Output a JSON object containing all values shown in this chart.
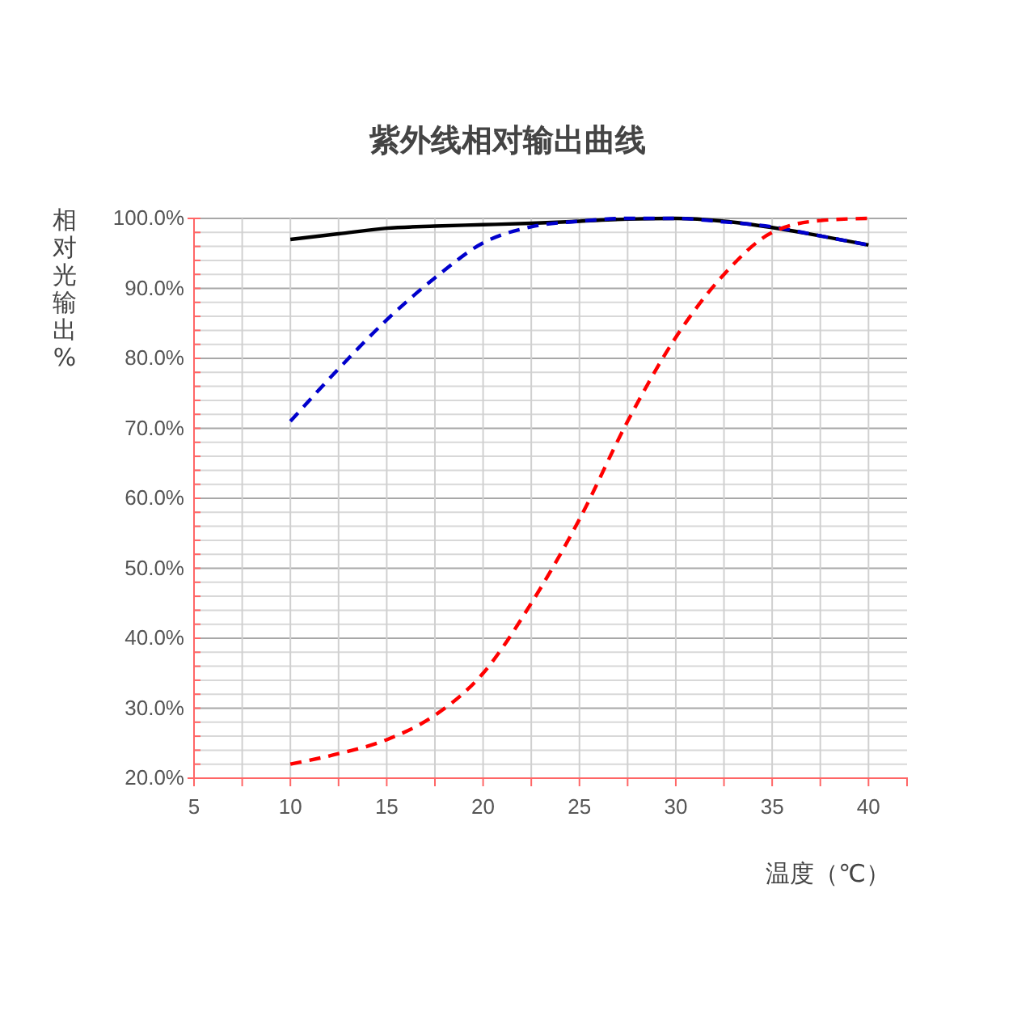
{
  "chart_data": {
    "type": "line",
    "title": "紫外线相对输出曲线",
    "xlabel": "温度（℃）",
    "ylabel": "相对光输出%",
    "x": [
      10,
      12.5,
      15,
      17.5,
      20,
      22.5,
      25,
      27.5,
      30,
      32.5,
      35,
      37.5,
      40
    ],
    "series": [
      {
        "color": "#000000",
        "line_style": "solid",
        "values": [
          97,
          97.8,
          98.6,
          98.9,
          99.1,
          99.3,
          99.6,
          99.9,
          100,
          99.6,
          98.7,
          97.5,
          96.2
        ]
      },
      {
        "color": "#0000cc",
        "line_style": "dashed",
        "values": [
          71,
          78.5,
          85.5,
          91.5,
          96.5,
          98.8,
          99.6,
          100,
          100,
          99.5,
          98.8,
          97.5,
          96.2
        ]
      },
      {
        "color": "#ff0000",
        "line_style": "dashed",
        "values": [
          22,
          23.5,
          25.5,
          29,
          35,
          45,
          57,
          71,
          83,
          92,
          98,
          99.7,
          100
        ]
      }
    ],
    "xlim": [
      5,
      42
    ],
    "xticks": [
      5,
      {
        "value": 7.5,
        "label": null
      },
      10,
      {
        "value": 12.5,
        "label": null
      },
      15,
      {
        "value": 17.5,
        "label": null
      },
      20,
      {
        "value": 22.5,
        "label": null
      },
      25,
      {
        "value": 27.5,
        "label": null
      },
      30,
      {
        "value": 32.5,
        "label": null
      },
      35,
      {
        "value": 37.5,
        "label": null
      },
      40
    ],
    "ylim": [
      20,
      100
    ],
    "yticks": [
      {
        "value": 20,
        "label": "20.0%"
      },
      {
        "value": 22,
        "label": null
      },
      {
        "value": 24,
        "label": null
      },
      {
        "value": 26,
        "label": null
      },
      {
        "value": 28,
        "label": null
      },
      {
        "value": 30,
        "label": "30.0%"
      },
      {
        "value": 32,
        "label": null
      },
      {
        "value": 34,
        "label": null
      },
      {
        "value": 36,
        "label": null
      },
      {
        "value": 38,
        "label": null
      },
      {
        "value": 40,
        "label": "40.0%"
      },
      {
        "value": 42,
        "label": null
      },
      {
        "value": 44,
        "label": null
      },
      {
        "value": 46,
        "label": null
      },
      {
        "value": 48,
        "label": null
      },
      {
        "value": 50,
        "label": "50.0%"
      },
      {
        "value": 52,
        "label": null
      },
      {
        "value": 54,
        "label": null
      },
      {
        "value": 56,
        "label": null
      },
      {
        "value": 58,
        "label": null
      },
      {
        "value": 60,
        "label": "60.0%"
      },
      {
        "value": 62,
        "label": null
      },
      {
        "value": 64,
        "label": null
      },
      {
        "value": 66,
        "label": null
      },
      {
        "value": 68,
        "label": null
      },
      {
        "value": 70,
        "label": "70.0%"
      },
      {
        "value": 72,
        "label": null
      },
      {
        "value": 74,
        "label": null
      },
      {
        "value": 76,
        "label": null
      },
      {
        "value": 78,
        "label": null
      },
      {
        "value": 80,
        "label": "80.0%"
      },
      {
        "value": 82,
        "label": null
      },
      {
        "value": 84,
        "label": null
      },
      {
        "value": 86,
        "label": null
      },
      {
        "value": 88,
        "label": null
      },
      {
        "value": 90,
        "label": "90.0%"
      },
      {
        "value": 92,
        "label": null
      },
      {
        "value": 94,
        "label": null
      },
      {
        "value": 96,
        "label": null
      },
      {
        "value": 98,
        "label": null
      },
      {
        "value": 100,
        "label": "100.0%"
      }
    ],
    "grid": true,
    "marker": "none"
  }
}
